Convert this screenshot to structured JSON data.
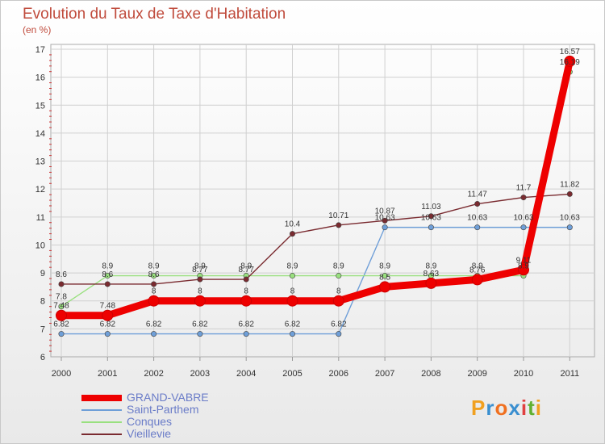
{
  "chart_data": {
    "type": "line",
    "title": "Evolution du Taux de Taxe d'Habitation",
    "unit_label": "(en %)",
    "categories": [
      "2000",
      "2001",
      "2002",
      "2003",
      "2004",
      "2005",
      "2006",
      "2007",
      "2008",
      "2009",
      "2010",
      "2011"
    ],
    "ylim": [
      6,
      17
    ],
    "yticks": [
      "6",
      "7",
      "8",
      "9",
      "10",
      "11",
      "12",
      "13",
      "14",
      "15",
      "16",
      "17"
    ],
    "series": [
      {
        "name": "GRAND-VABRE",
        "color": "#ee0000",
        "values": [
          7.48,
          7.48,
          8,
          8,
          8,
          8,
          8,
          8.5,
          8.63,
          8.76,
          9.11,
          16.57
        ],
        "labels": [
          "7.48",
          "7.48",
          "8",
          "8",
          "8",
          "8",
          "8",
          "8.5",
          "8.63",
          "8.76",
          "9.11",
          "16.57"
        ]
      },
      {
        "name": "Saint-Parthem",
        "color": "#6f9fd8",
        "values": [
          6.82,
          6.82,
          6.82,
          6.82,
          6.82,
          6.82,
          6.82,
          10.63,
          10.63,
          10.63,
          10.63,
          10.63
        ],
        "labels": [
          "6.82",
          "6.82",
          "6.82",
          "6.82",
          "6.82",
          "6.82",
          "6.82",
          "10.63",
          "10.63",
          "10.63",
          "10.63",
          "10.63"
        ]
      },
      {
        "name": "Conques",
        "color": "#99e07f",
        "values": [
          7.8,
          8.9,
          8.9,
          8.9,
          8.9,
          8.9,
          8.9,
          8.9,
          8.9,
          8.9,
          8.9,
          16.19
        ],
        "labels": [
          "7.8",
          "8.9",
          "8.9",
          "8.9",
          "8.9",
          "8.9",
          "8.9",
          "8.9",
          "8.9",
          "8.9",
          "8.9",
          "16.19"
        ]
      },
      {
        "name": "Vieillevie",
        "color": "#7a2b30",
        "values": [
          8.6,
          8.6,
          8.6,
          8.77,
          8.77,
          10.4,
          10.71,
          10.87,
          11.03,
          11.47,
          11.7,
          11.82
        ],
        "labels": [
          "8.6",
          "8.6",
          "8.6",
          "8.77",
          "8.77",
          "10.4",
          "10.71",
          "10.87",
          "11.03",
          "11.47",
          "11.7",
          "11.82"
        ]
      }
    ],
    "legend_position": "bottom-left"
  },
  "logo": {
    "letters": [
      "P",
      "r",
      "o",
      "x",
      "i",
      "t",
      "i"
    ],
    "colors": [
      "#f0a020",
      "#3a8fd0",
      "#f07020",
      "#3a8fd0",
      "#e04040",
      "#60b030",
      "#f0a020"
    ]
  }
}
